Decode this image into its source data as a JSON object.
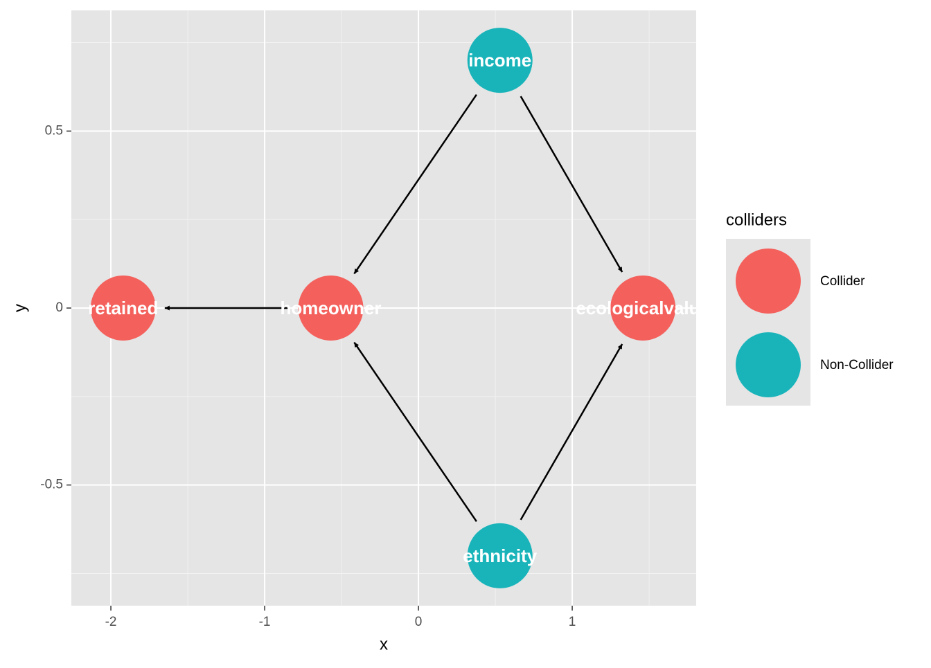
{
  "chart_data": {
    "type": "dag",
    "x_label": "x",
    "y_label": "y",
    "xlim": [
      -2.257,
      1.806
    ],
    "ylim": [
      -0.841,
      0.841
    ],
    "xticks": [
      -2,
      -1,
      0,
      1
    ],
    "yticks": [
      -0.5,
      0.0,
      0.5
    ],
    "xminor": [
      -1.5,
      -0.5,
      0.5,
      1.5
    ],
    "yminor": [
      -0.75,
      -0.25,
      0.25,
      0.75
    ],
    "grid": true,
    "legend": {
      "title": "colliders",
      "position": "right",
      "groups": [
        {
          "name": "Collider",
          "color": "#f4605c"
        },
        {
          "name": "Non-Collider",
          "color": "#19b4ba"
        }
      ]
    },
    "nodes": [
      {
        "name": "retained",
        "x": -1.92,
        "y": 0,
        "group": 0
      },
      {
        "name": "homeowner",
        "x": -0.57,
        "y": 0,
        "group": 0
      },
      {
        "name": "ecologicalvalue",
        "x": 1.46,
        "y": 0,
        "group": 0
      },
      {
        "name": "income",
        "x": 0.53,
        "y": 0.7,
        "group": 1
      },
      {
        "name": "ethnicity",
        "x": 0.53,
        "y": -0.7,
        "group": 1
      }
    ],
    "edges": [
      [
        3,
        1
      ],
      [
        3,
        2
      ],
      [
        4,
        1
      ],
      [
        4,
        2
      ],
      [
        1,
        0
      ]
    ]
  }
}
